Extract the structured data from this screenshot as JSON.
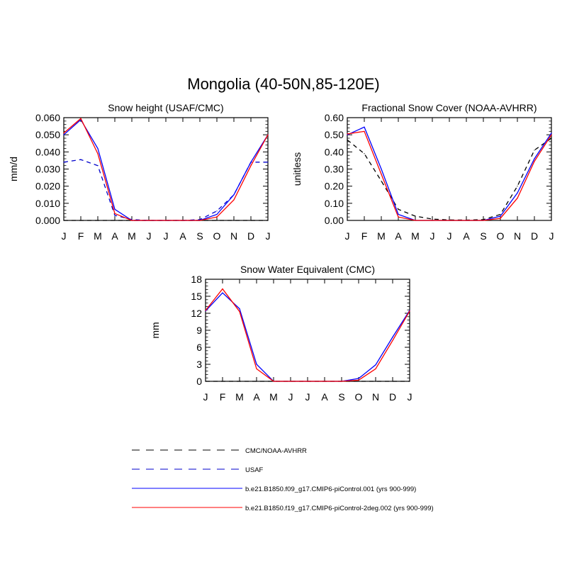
{
  "title": "Mongolia (40-50N,85-120E)",
  "colors": {
    "obs": "#000000",
    "usaf": "#0000cc",
    "blue": "#0000ff",
    "red": "#ff0000"
  },
  "chart_data": [
    {
      "type": "line",
      "title": "Snow height (USAF/CMC)",
      "ylabel": "mm/d",
      "categories": [
        "J",
        "F",
        "M",
        "A",
        "M",
        "J",
        "J",
        "A",
        "S",
        "O",
        "N",
        "D",
        "J"
      ],
      "ylim": [
        0,
        0.06
      ],
      "yticks": [
        "0.000",
        "0.010",
        "0.020",
        "0.030",
        "0.040",
        "0.050",
        "0.060"
      ],
      "series": [
        {
          "name": "CMC/NOAA-AVHRR",
          "style": "dashed",
          "color": "#000000",
          "values": [
            0,
            0,
            0,
            0,
            0,
            0,
            0,
            0,
            0,
            0,
            0,
            0,
            0
          ]
        },
        {
          "name": "USAF",
          "style": "dashed",
          "color": "#0000cc",
          "values": [
            0.034,
            0.0355,
            0.032,
            0.003,
            0.0005,
            0,
            0,
            0,
            0.0005,
            0.0055,
            0.015,
            0.034,
            0.034
          ]
        },
        {
          "name": "b.e21.B1850.f09_g17.CMIP6-piControl.001 (yrs 900-999)",
          "style": "solid",
          "color": "#0000ff",
          "values": [
            0.05,
            0.0588,
            0.042,
            0.0065,
            0,
            0,
            0,
            0,
            0,
            0.0035,
            0.015,
            0.034,
            0.05
          ]
        },
        {
          "name": "b.e21.B1850.f19_g17.CMIP6-piControl-2deg.002 (yrs 900-999)",
          "style": "solid",
          "color": "#ff0000",
          "values": [
            0.051,
            0.0595,
            0.039,
            0.004,
            0,
            0,
            0,
            0,
            0,
            0.002,
            0.012,
            0.032,
            0.05
          ]
        }
      ]
    },
    {
      "type": "line",
      "title": "Fractional Snow Cover (NOAA-AVHRR)",
      "ylabel": "unitless",
      "categories": [
        "J",
        "F",
        "M",
        "A",
        "M",
        "J",
        "J",
        "A",
        "S",
        "O",
        "N",
        "D",
        "J"
      ],
      "ylim": [
        0,
        0.6
      ],
      "yticks": [
        "0.00",
        "0.10",
        "0.20",
        "0.30",
        "0.40",
        "0.50",
        "0.60"
      ],
      "series": [
        {
          "name": "CMC/NOAA-AVHRR",
          "style": "dashed",
          "color": "#000000",
          "values": [
            0.47,
            0.39,
            0.23,
            0.065,
            0.025,
            0.008,
            0.003,
            0.002,
            0.005,
            0.035,
            0.2,
            0.41,
            0.48
          ]
        },
        {
          "name": "b.e21.B1850.f09_g17.CMIP6-piControl.001 (yrs 900-999)",
          "style": "solid",
          "color": "#0000ff",
          "values": [
            0.5,
            0.545,
            0.3,
            0.035,
            0,
            0,
            0,
            0,
            0,
            0.025,
            0.16,
            0.36,
            0.51
          ]
        },
        {
          "name": "b.e21.B1850.f19_g17.CMIP6-piControl-2deg.002 (yrs 900-999)",
          "style": "solid",
          "color": "#ff0000",
          "values": [
            0.505,
            0.52,
            0.27,
            0.02,
            0,
            0,
            0,
            0,
            0,
            0.012,
            0.13,
            0.345,
            0.5
          ]
        }
      ]
    },
    {
      "type": "line",
      "title": "Snow Water Equivalent (CMC)",
      "ylabel": "mm",
      "categories": [
        "J",
        "F",
        "M",
        "A",
        "M",
        "J",
        "J",
        "A",
        "S",
        "O",
        "N",
        "D",
        "J"
      ],
      "ylim": [
        0,
        18
      ],
      "yticks": [
        "0",
        "3",
        "6",
        "9",
        "12",
        "15",
        "18"
      ],
      "series": [
        {
          "name": "CMC/NOAA-AVHRR",
          "style": "dashed",
          "color": "#000000",
          "values": [
            0,
            0,
            0,
            0,
            0,
            0,
            0,
            0,
            0,
            0,
            0,
            0,
            0
          ]
        },
        {
          "name": "b.e21.B1850.f09_g17.CMIP6-piControl.001 (yrs 900-999)",
          "style": "solid",
          "color": "#0000ff",
          "values": [
            12.4,
            15.6,
            12.8,
            3.0,
            0,
            0,
            0,
            0,
            0,
            0.5,
            2.9,
            7.8,
            12.5
          ]
        },
        {
          "name": "b.e21.B1850.f19_g17.CMIP6-piControl-2deg.002 (yrs 900-999)",
          "style": "solid",
          "color": "#ff0000",
          "values": [
            12.5,
            16.3,
            12.3,
            2.2,
            0,
            0,
            0,
            0,
            0,
            0.2,
            2.2,
            7.2,
            12.4
          ]
        }
      ]
    }
  ],
  "legend": [
    {
      "label": "CMC/NOAA-AVHRR",
      "style": "dashed",
      "color": "#000000"
    },
    {
      "label": "USAF",
      "style": "dashed",
      "color": "#0000cc"
    },
    {
      "label": "b.e21.B1850.f09_g17.CMIP6-piControl.001 (yrs 900-999)",
      "style": "solid",
      "color": "#0000ff"
    },
    {
      "label": "b.e21.B1850.f19_g17.CMIP6-piControl-2deg.002 (yrs 900-999)",
      "style": "solid",
      "color": "#ff0000"
    }
  ]
}
